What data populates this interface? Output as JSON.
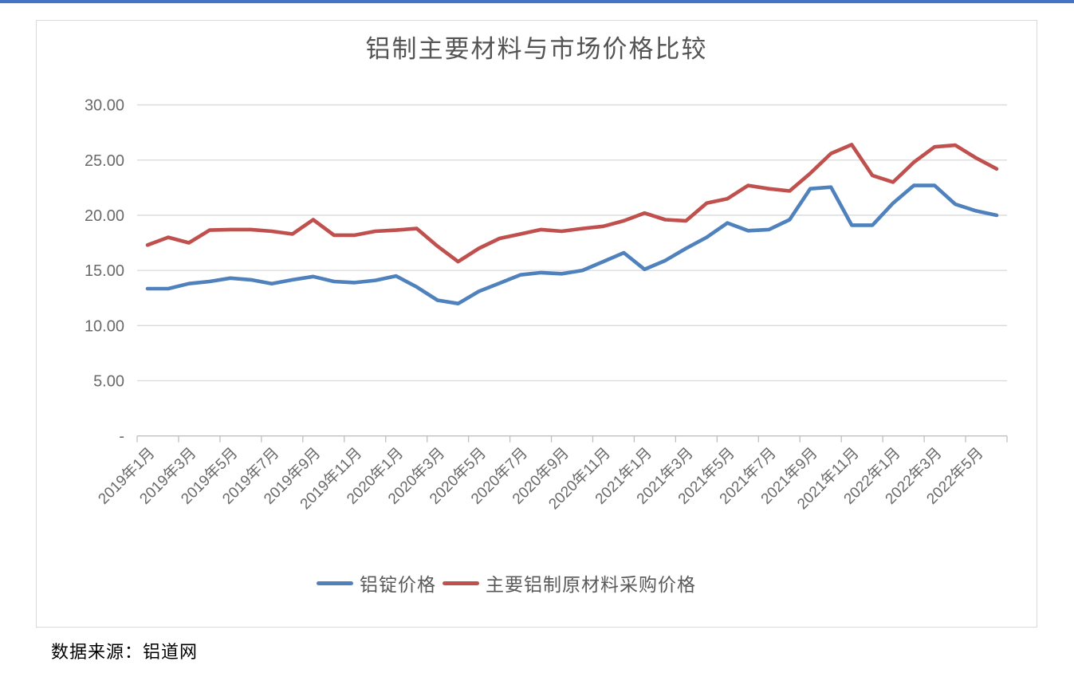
{
  "page": {
    "top_bar_color": "#4472c4",
    "source_note": "数据来源：铝道网"
  },
  "chart_data": {
    "type": "line",
    "title": "铝制主要材料与市场价格比较",
    "grid": true,
    "legend_position": "bottom",
    "ylim": [
      0,
      30
    ],
    "y_step": 5,
    "y_tick_labels": [
      "30.00",
      "25.00",
      "20.00",
      "15.00",
      "10.00",
      "5.00",
      "-"
    ],
    "y_tick_values": [
      30,
      25,
      20,
      15,
      10,
      5,
      0
    ],
    "x_tick_labels": [
      "2019年1月",
      "2019年3月",
      "2019年5月",
      "2019年7月",
      "2019年9月",
      "2019年11月",
      "2020年1月",
      "2020年3月",
      "2020年5月",
      "2020年7月",
      "2020年9月",
      "2020年11月",
      "2021年1月",
      "2021年3月",
      "2021年5月",
      "2021年7月",
      "2021年9月",
      "2021年11月",
      "2022年1月",
      "2022年3月",
      "2022年5月"
    ],
    "gridline_color": "#d9d9d9",
    "axis_color": "#bfbfbf",
    "series": [
      {
        "name": "铝锭价格",
        "color": "#4f81bd",
        "values": [
          13.35,
          13.35,
          13.8,
          14.0,
          14.3,
          14.15,
          13.8,
          14.15,
          14.45,
          14.0,
          13.9,
          14.1,
          14.5,
          13.5,
          12.3,
          12.0,
          13.1,
          13.85,
          14.6,
          14.8,
          14.7,
          15.0,
          15.8,
          16.6,
          15.1,
          15.9,
          17.0,
          18.0,
          19.3,
          18.6,
          18.7,
          19.6,
          22.4,
          22.55,
          19.1,
          19.1,
          21.1,
          22.7,
          22.7,
          21.0,
          20.4,
          20.0
        ]
      },
      {
        "name": "主要铝制原材料采购价格",
        "color": "#c0504d",
        "values": [
          17.3,
          18.0,
          17.5,
          18.65,
          18.7,
          18.7,
          18.55,
          18.3,
          19.6,
          18.2,
          18.2,
          18.55,
          18.65,
          18.8,
          17.2,
          15.8,
          17.0,
          17.9,
          18.3,
          18.7,
          18.55,
          18.8,
          19.0,
          19.5,
          20.2,
          19.6,
          19.5,
          21.1,
          21.5,
          22.7,
          22.4,
          22.2,
          23.8,
          25.6,
          26.4,
          23.6,
          23.0,
          24.8,
          26.2,
          26.35,
          25.2,
          24.2
        ]
      }
    ]
  }
}
